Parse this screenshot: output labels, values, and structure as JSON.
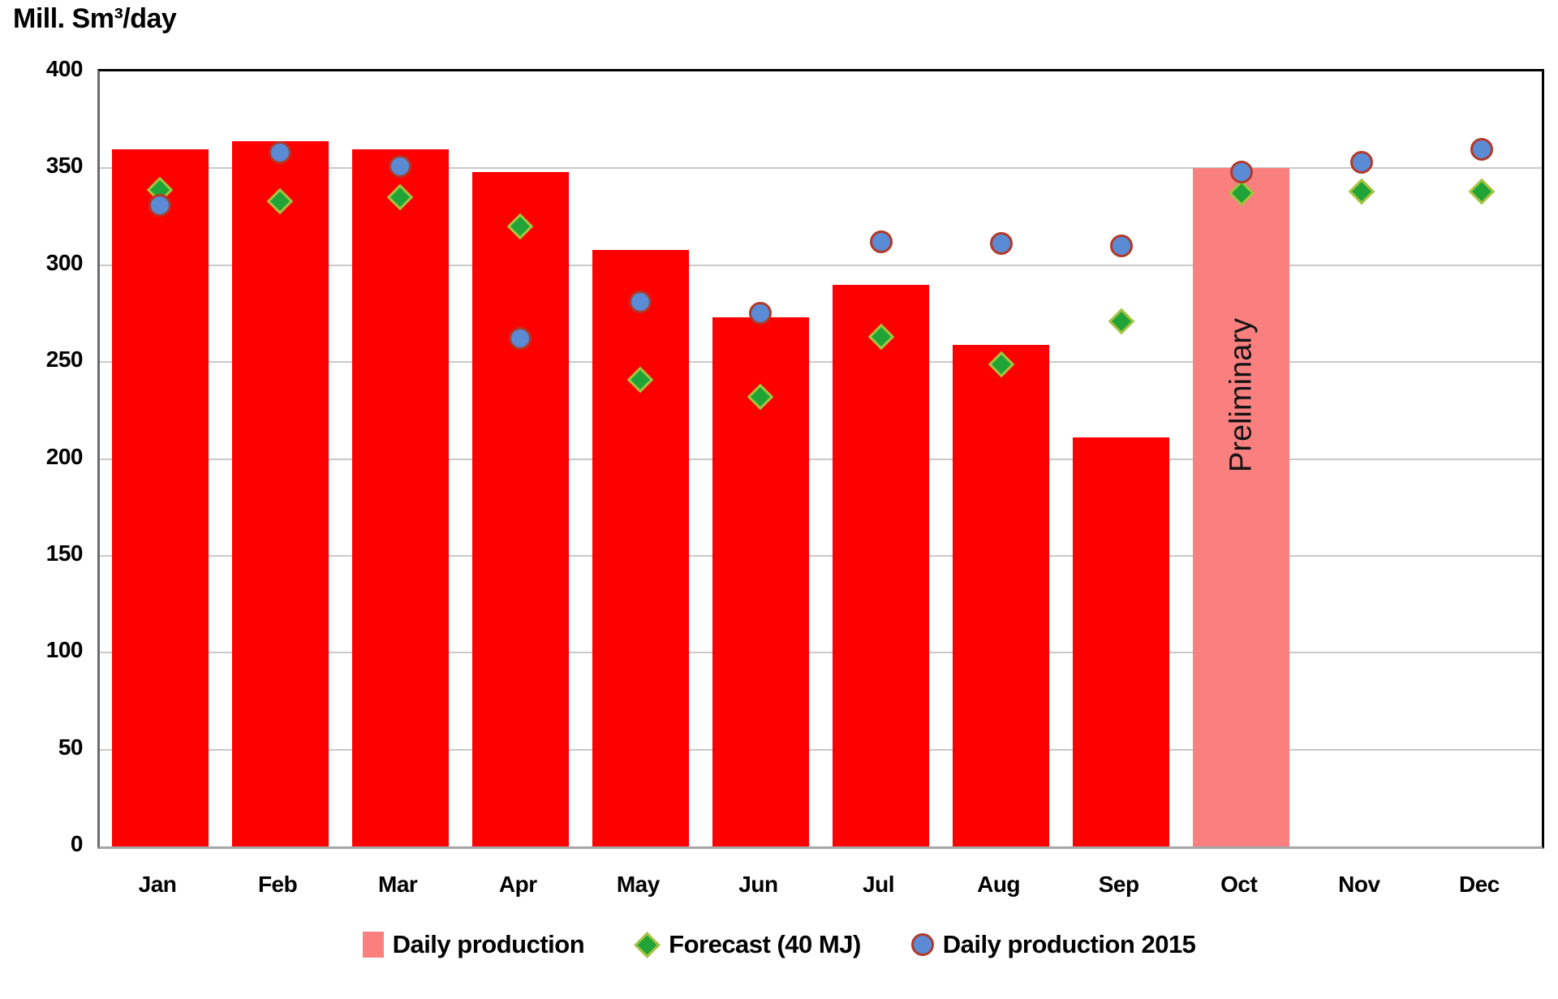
{
  "title": "Mill. Sm³/day",
  "chart_data": {
    "type": "bar",
    "title": "Mill. Sm³/day",
    "ylabel": "Mill. Sm³/day",
    "xlabel": "",
    "categories": [
      "Jan",
      "Feb",
      "Mar",
      "Apr",
      "May",
      "Jun",
      "Jul",
      "Aug",
      "Sep",
      "Oct",
      "Nov",
      "Dec"
    ],
    "ylim": [
      0,
      400
    ],
    "yticks": [
      0,
      50,
      100,
      150,
      200,
      250,
      300,
      350,
      400
    ],
    "grid": true,
    "legend_position": "bottom",
    "series": [
      {
        "name": "Daily production",
        "type": "bar",
        "color": "#ff0000",
        "preliminary_color": "#fa8080",
        "preliminary_months": [
          "Oct"
        ],
        "values": [
          360,
          364,
          360,
          348,
          308,
          273,
          290,
          259,
          211,
          350,
          null,
          null
        ]
      },
      {
        "name": "Forecast (40 MJ)",
        "type": "scatter",
        "marker": "diamond",
        "fill": "#21a437",
        "border": "#a9c23f",
        "values": [
          339,
          333,
          335,
          320,
          241,
          232,
          263,
          249,
          271,
          337,
          338,
          338
        ]
      },
      {
        "name": "Daily production 2015",
        "type": "scatter",
        "marker": "circle",
        "fill": "#5b8bd5",
        "border": "#b03a2b",
        "values": [
          331,
          358,
          351,
          262,
          281,
          275,
          312,
          311,
          310,
          348,
          353,
          360
        ]
      }
    ],
    "annotations": [
      {
        "text": "Preliminary",
        "month": "Oct"
      }
    ]
  }
}
